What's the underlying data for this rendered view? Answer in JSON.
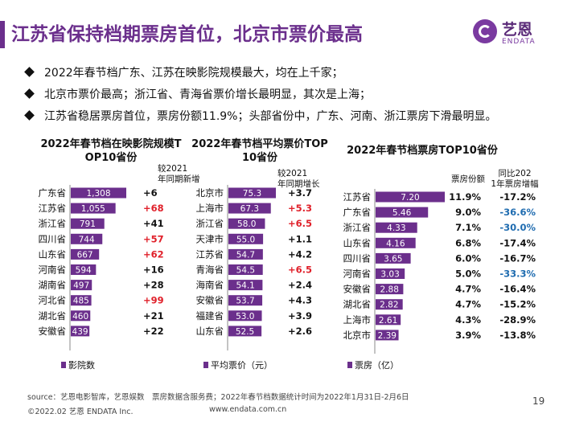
{
  "header": {
    "title": "江苏省保持档期票房首位，北京市票价最高",
    "logo_cn": "艺恩",
    "logo_en": "ENDATA"
  },
  "bullets": [
    "2022年春节档广东、江苏在映影院规模最大，均在上千家；",
    "北京市票价最高；浙江省、青海省票价增长最明显，其次是上海；",
    "江苏省稳居票房首位，票房份额11.9%；头部省份中，广东、河南、浙江票房下滑最明显。"
  ],
  "colors": {
    "bar": "#6b2f8c",
    "brand": "#6b2f8c",
    "positive_red": "#e0202a",
    "negative_blue": "#1f6cb0",
    "text": "#111111"
  },
  "chart_data": [
    {
      "type": "bar",
      "orientation": "horizontal",
      "title": "2022年春节档在映影院规模TOP10省份",
      "categories": [
        "广东省",
        "江苏省",
        "浙江省",
        "四川省",
        "山东省",
        "河南省",
        "湖南省",
        "河北省",
        "湖北省",
        "安徽省"
      ],
      "values": [
        1308,
        1055,
        791,
        744,
        667,
        594,
        497,
        485,
        460,
        439
      ],
      "value_labels": [
        "1,308",
        "1,055",
        "791",
        "744",
        "667",
        "594",
        "497",
        "485",
        "460",
        "439"
      ],
      "extra_column_header": "较2021年同期新增",
      "extra_column": [
        "+6",
        "+68",
        "+41",
        "+57",
        "+62",
        "+16",
        "+28",
        "+99",
        "+21",
        "+22"
      ],
      "extra_column_highlight": [
        false,
        true,
        false,
        true,
        true,
        false,
        false,
        true,
        false,
        false
      ],
      "legend": "影院数",
      "xlim": [
        0,
        1308
      ]
    },
    {
      "type": "bar",
      "orientation": "horizontal",
      "title": "2022年春节档平均票价TOP10省份",
      "categories": [
        "北京市",
        "上海市",
        "浙江省",
        "天津市",
        "江苏省",
        "青海省",
        "海南省",
        "安徽省",
        "福建省",
        "山东省"
      ],
      "values": [
        75.3,
        67.3,
        58.0,
        55.0,
        54.7,
        54.5,
        54.1,
        53.7,
        53.0,
        52.5
      ],
      "value_labels": [
        "75.3",
        "67.3",
        "58.0",
        "55.0",
        "54.7",
        "54.5",
        "54.1",
        "53.7",
        "53.0",
        "52.5"
      ],
      "extra_column_header": "较2021年同期增长",
      "extra_column": [
        "+3.7",
        "+5.3",
        "+6.5",
        "+1.1",
        "+4.2",
        "+6.5",
        "+2.4",
        "+4.3",
        "+3.9",
        "+2.6"
      ],
      "extra_column_highlight": [
        false,
        true,
        true,
        false,
        false,
        true,
        false,
        false,
        false,
        false
      ],
      "legend": "平均票价（元）",
      "xlim": [
        0,
        75.3
      ]
    },
    {
      "type": "bar",
      "orientation": "horizontal",
      "title": "2022年春节档票房TOP10省份",
      "categories": [
        "江苏省",
        "广东省",
        "浙江省",
        "山东省",
        "四川省",
        "河南省",
        "安徽省",
        "湖北省",
        "上海市",
        "北京市"
      ],
      "values": [
        7.2,
        5.46,
        4.33,
        4.16,
        3.65,
        3.03,
        2.88,
        2.82,
        2.61,
        2.39
      ],
      "value_labels": [
        "7.20",
        "5.46",
        "4.33",
        "4.16",
        "3.65",
        "3.03",
        "2.88",
        "2.82",
        "2.61",
        "2.39"
      ],
      "share_header": "票房份额",
      "share": [
        "11.9%",
        "9.0%",
        "7.1%",
        "6.8%",
        "6.0%",
        "5.0%",
        "4.7%",
        "4.7%",
        "4.3%",
        "3.9%"
      ],
      "yoy_header": "同比2021年票房增幅",
      "yoy": [
        "-17.2%",
        "-36.6%",
        "-30.0%",
        "-17.4%",
        "-16.7%",
        "-33.3%",
        "-16.4%",
        "-15.2%",
        "-28.9%",
        "-13.8%"
      ],
      "yoy_highlight": [
        false,
        true,
        true,
        false,
        false,
        true,
        false,
        false,
        false,
        false
      ],
      "legend": "票房（亿）",
      "xlim": [
        0,
        7.2
      ]
    }
  ],
  "footer": {
    "source": "source：艺恩电影智库，艺恩娱数　票房数据含服务费；2022年春节档数据统计时间为2022年1月31日-2月6日",
    "copyright": "©2022.02 艺恩 ENDATA Inc.",
    "website": "www.endata.com.cn",
    "page_number": "19"
  }
}
